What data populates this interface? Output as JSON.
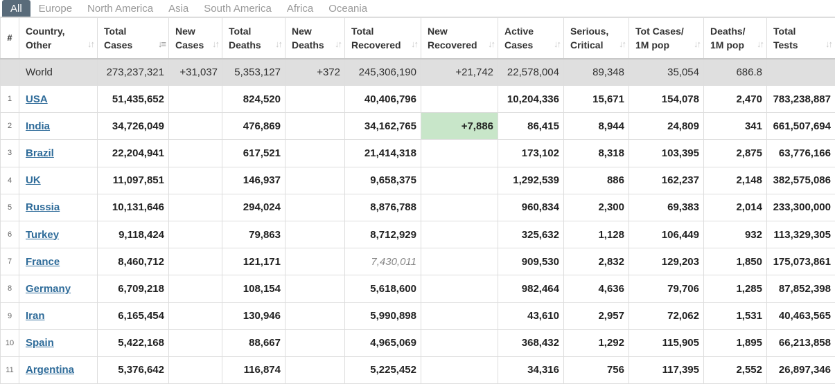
{
  "tabs": [
    "All",
    "Europe",
    "North America",
    "Asia",
    "South America",
    "Africa",
    "Oceania"
  ],
  "active_tab": 0,
  "columns": [
    {
      "l1": "#",
      "l2": ""
    },
    {
      "l1": "Country,",
      "l2": "Other"
    },
    {
      "l1": "Total",
      "l2": "Cases"
    },
    {
      "l1": "New",
      "l2": "Cases"
    },
    {
      "l1": "Total",
      "l2": "Deaths"
    },
    {
      "l1": "New",
      "l2": "Deaths"
    },
    {
      "l1": "Total",
      "l2": "Recovered"
    },
    {
      "l1": "New",
      "l2": "Recovered"
    },
    {
      "l1": "Active",
      "l2": "Cases"
    },
    {
      "l1": "Serious,",
      "l2": "Critical"
    },
    {
      "l1": "Tot Cases/",
      "l2": "1M pop"
    },
    {
      "l1": "Deaths/",
      "l2": "1M pop"
    },
    {
      "l1": "Total",
      "l2": "Tests"
    }
  ],
  "sort_icon": "↓↑",
  "sort_active_icon": "↓≡",
  "world": {
    "country": "World",
    "total_cases": "273,237,321",
    "new_cases": "+31,037",
    "total_deaths": "5,353,127",
    "new_deaths": "+372",
    "total_recovered": "245,306,190",
    "new_recovered": "+21,742",
    "active_cases": "22,578,004",
    "serious": "89,348",
    "cases_per_m": "35,054",
    "deaths_per_m": "686.8",
    "total_tests": ""
  },
  "rows": [
    {
      "n": "1",
      "country": "USA",
      "total_cases": "51,435,652",
      "new_cases": "",
      "total_deaths": "824,520",
      "new_deaths": "",
      "total_recovered": "40,406,796",
      "new_recovered": "",
      "active_cases": "10,204,336",
      "serious": "15,671",
      "cases_per_m": "154,078",
      "deaths_per_m": "2,470",
      "total_tests": "783,238,887"
    },
    {
      "n": "2",
      "country": "India",
      "total_cases": "34,726,049",
      "new_cases": "",
      "total_deaths": "476,869",
      "new_deaths": "",
      "total_recovered": "34,162,765",
      "new_recovered": "+7,886",
      "active_cases": "86,415",
      "serious": "8,944",
      "cases_per_m": "24,809",
      "deaths_per_m": "341",
      "total_tests": "661,507,694"
    },
    {
      "n": "3",
      "country": "Brazil",
      "total_cases": "22,204,941",
      "new_cases": "",
      "total_deaths": "617,521",
      "new_deaths": "",
      "total_recovered": "21,414,318",
      "new_recovered": "",
      "active_cases": "173,102",
      "serious": "8,318",
      "cases_per_m": "103,395",
      "deaths_per_m": "2,875",
      "total_tests": "63,776,166"
    },
    {
      "n": "4",
      "country": "UK",
      "total_cases": "11,097,851",
      "new_cases": "",
      "total_deaths": "146,937",
      "new_deaths": "",
      "total_recovered": "9,658,375",
      "new_recovered": "",
      "active_cases": "1,292,539",
      "serious": "886",
      "cases_per_m": "162,237",
      "deaths_per_m": "2,148",
      "total_tests": "382,575,086"
    },
    {
      "n": "5",
      "country": "Russia",
      "total_cases": "10,131,646",
      "new_cases": "",
      "total_deaths": "294,024",
      "new_deaths": "",
      "total_recovered": "8,876,788",
      "new_recovered": "",
      "active_cases": "960,834",
      "serious": "2,300",
      "cases_per_m": "69,383",
      "deaths_per_m": "2,014",
      "total_tests": "233,300,000"
    },
    {
      "n": "6",
      "country": "Turkey",
      "total_cases": "9,118,424",
      "new_cases": "",
      "total_deaths": "79,863",
      "new_deaths": "",
      "total_recovered": "8,712,929",
      "new_recovered": "",
      "active_cases": "325,632",
      "serious": "1,128",
      "cases_per_m": "106,449",
      "deaths_per_m": "932",
      "total_tests": "113,329,305"
    },
    {
      "n": "7",
      "country": "France",
      "total_cases": "8,460,712",
      "new_cases": "",
      "total_deaths": "121,171",
      "new_deaths": "",
      "total_recovered": "7,430,011",
      "new_recovered": "",
      "active_cases": "909,530",
      "serious": "2,832",
      "cases_per_m": "129,203",
      "deaths_per_m": "1,850",
      "total_tests": "175,073,861",
      "recovered_italic": true
    },
    {
      "n": "8",
      "country": "Germany",
      "total_cases": "6,709,218",
      "new_cases": "",
      "total_deaths": "108,154",
      "new_deaths": "",
      "total_recovered": "5,618,600",
      "new_recovered": "",
      "active_cases": "982,464",
      "serious": "4,636",
      "cases_per_m": "79,706",
      "deaths_per_m": "1,285",
      "total_tests": "87,852,398"
    },
    {
      "n": "9",
      "country": "Iran",
      "total_cases": "6,165,454",
      "new_cases": "",
      "total_deaths": "130,946",
      "new_deaths": "",
      "total_recovered": "5,990,898",
      "new_recovered": "",
      "active_cases": "43,610",
      "serious": "2,957",
      "cases_per_m": "72,062",
      "deaths_per_m": "1,531",
      "total_tests": "40,463,565"
    },
    {
      "n": "10",
      "country": "Spain",
      "total_cases": "5,422,168",
      "new_cases": "",
      "total_deaths": "88,667",
      "new_deaths": "",
      "total_recovered": "4,965,069",
      "new_recovered": "",
      "active_cases": "368,432",
      "serious": "1,292",
      "cases_per_m": "115,905",
      "deaths_per_m": "1,895",
      "total_tests": "66,213,858"
    },
    {
      "n": "11",
      "country": "Argentina",
      "total_cases": "5,376,642",
      "new_cases": "",
      "total_deaths": "116,874",
      "new_deaths": "",
      "total_recovered": "5,225,452",
      "new_recovered": "",
      "active_cases": "34,316",
      "serious": "756",
      "cases_per_m": "117,395",
      "deaths_per_m": "2,552",
      "total_tests": "26,897,346"
    }
  ]
}
